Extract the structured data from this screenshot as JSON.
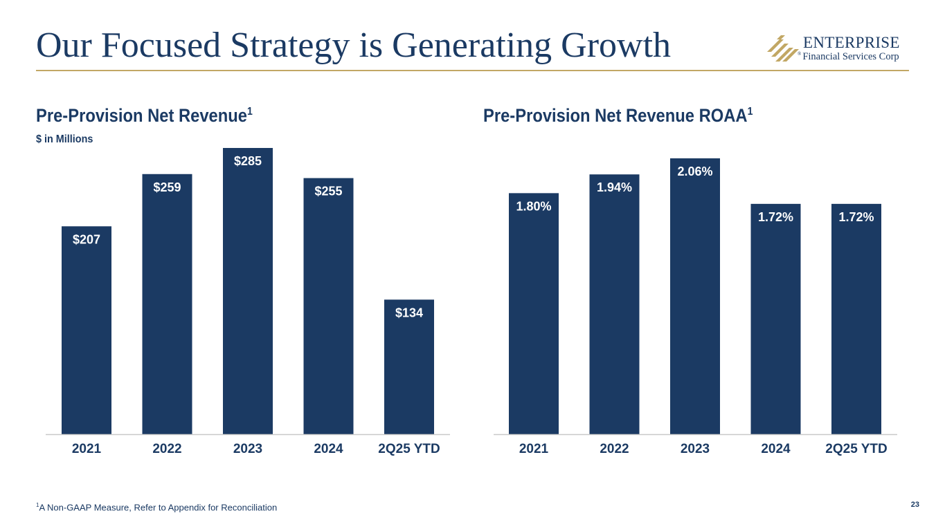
{
  "slide": {
    "title": "Our Focused Strategy is Generating Growth",
    "page_number": "23",
    "footnote_marker": "1",
    "footnote_text": "A Non-GAAP Measure, Refer to Appendix for Reconciliation"
  },
  "logo": {
    "name": "ENTERPRISE",
    "subtitle": "Financial Services Corp",
    "icon": "enterprise-stripes-logo-icon",
    "registered_mark": "®"
  },
  "colors": {
    "bar": "#1b3a63",
    "accent_gold": "#c2a764",
    "axis": "#c8c8c8"
  },
  "chart_data": [
    {
      "type": "bar",
      "title": "Pre-Provision Net Revenue",
      "title_superscript": "1",
      "units": "$ in Millions",
      "categories": [
        "2021",
        "2022",
        "2023",
        "2024",
        "2Q25 YTD"
      ],
      "values": [
        207,
        259,
        285,
        255,
        134
      ],
      "labels": [
        "$207",
        "$259",
        "$285",
        "$255",
        "$134"
      ],
      "ylim": [
        0,
        285
      ],
      "grid": false,
      "xlabel": "",
      "ylabel": ""
    },
    {
      "type": "bar",
      "title": "Pre-Provision Net Revenue ROAA",
      "title_superscript": "1",
      "categories": [
        "2021",
        "2022",
        "2023",
        "2024",
        "2Q25 YTD"
      ],
      "values": [
        1.8,
        1.94,
        2.06,
        1.72,
        1.72
      ],
      "labels": [
        "1.80%",
        "1.94%",
        "2.06%",
        "1.72%",
        "1.72%"
      ],
      "ylim": [
        0,
        2.06
      ],
      "grid": false,
      "xlabel": "",
      "ylabel": ""
    }
  ]
}
